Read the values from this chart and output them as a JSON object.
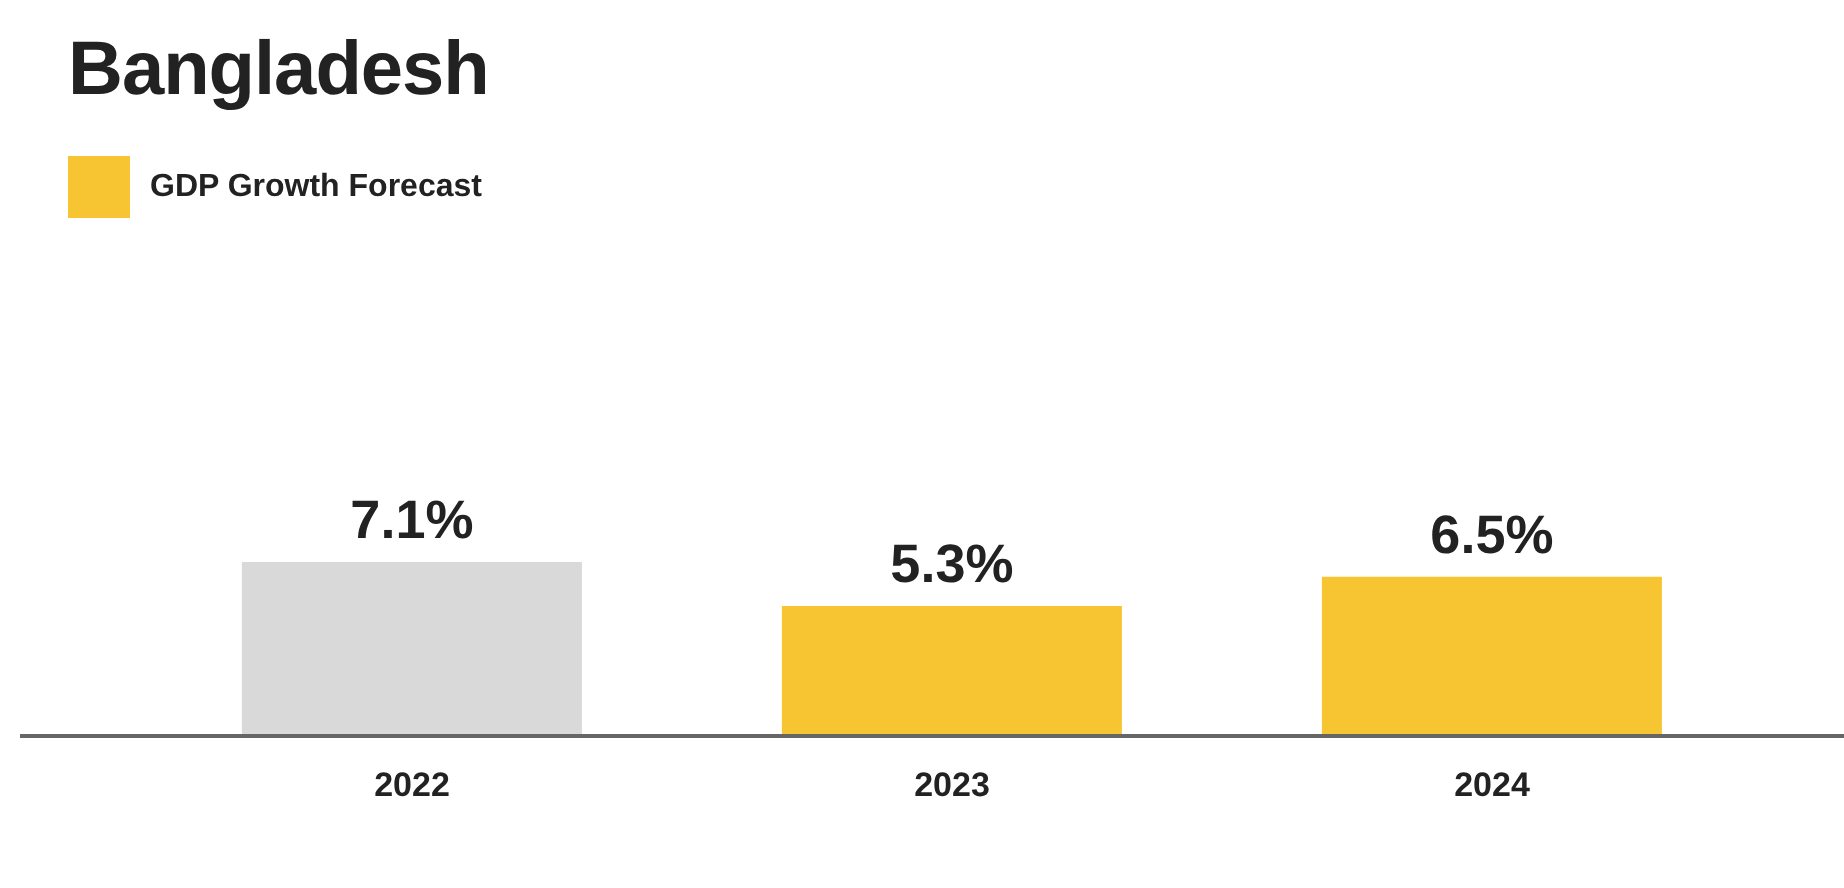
{
  "chart_data": {
    "type": "bar",
    "title": "Bangladesh",
    "categories": [
      "2022",
      "2023",
      "2024"
    ],
    "series": [
      {
        "name": "GDP Growth Forecast",
        "color": "#f7c531",
        "colors": [
          "#d9d9d9",
          "#f7c531",
          "#f7c531"
        ],
        "values": [
          7.1,
          5.3,
          6.5
        ],
        "value_labels": [
          "7.1%",
          "5.3%",
          "6.5%"
        ]
      }
    ],
    "legend": "top left"
  }
}
